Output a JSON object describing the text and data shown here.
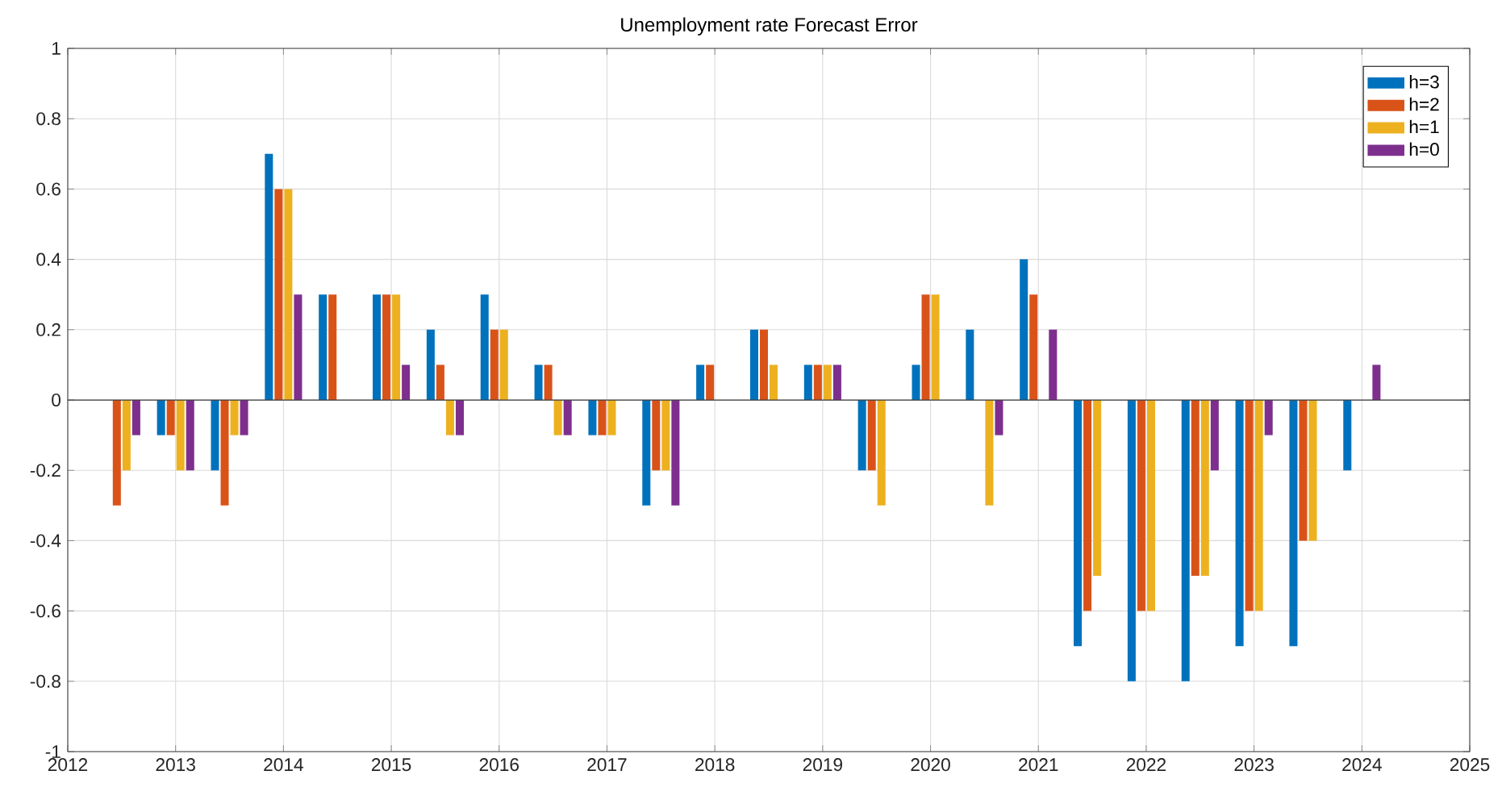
{
  "chart_data": {
    "type": "bar",
    "title": "Unemployment rate Forecast Error",
    "x": [
      2012.5,
      2013,
      2013.5,
      2014,
      2014.5,
      2015,
      2015.5,
      2016,
      2016.5,
      2017,
      2017.5,
      2018,
      2018.5,
      2019,
      2019.5,
      2020,
      2020.5,
      2021,
      2021.5,
      2022,
      2022.5,
      2023,
      2023.5,
      2024
    ],
    "series": [
      {
        "name": "h=3",
        "color": "#0072bd",
        "values": [
          0,
          -0.1,
          -0.2,
          0.7,
          0.3,
          0.3,
          0.2,
          0.3,
          0.1,
          -0.1,
          -0.3,
          0.1,
          0.2,
          0.1,
          -0.2,
          0.1,
          0.2,
          0.4,
          -0.7,
          -0.8,
          -0.8,
          -0.7,
          -0.7,
          -0.2
        ]
      },
      {
        "name": "h=2",
        "color": "#d95319",
        "values": [
          -0.3,
          -0.1,
          -0.3,
          0.6,
          0.3,
          0.3,
          0.1,
          0.2,
          0.1,
          -0.1,
          -0.2,
          0.1,
          0.2,
          0.1,
          -0.2,
          0.3,
          0,
          0.3,
          -0.6,
          -0.6,
          -0.5,
          -0.6,
          -0.4,
          0
        ]
      },
      {
        "name": "h=1",
        "color": "#edb120",
        "values": [
          -0.2,
          -0.2,
          -0.1,
          0.6,
          0,
          0.3,
          -0.1,
          0.2,
          -0.1,
          -0.1,
          -0.2,
          0,
          0.1,
          0.1,
          -0.3,
          0.3,
          -0.3,
          0,
          -0.5,
          -0.6,
          -0.5,
          -0.6,
          -0.4,
          0
        ]
      },
      {
        "name": "h=0",
        "color": "#7e2f8e",
        "values": [
          -0.1,
          -0.2,
          -0.1,
          0.3,
          0,
          0.1,
          -0.1,
          0,
          -0.1,
          0,
          -0.3,
          0,
          0,
          0.1,
          0,
          0,
          -0.1,
          0.2,
          0,
          0,
          -0.2,
          -0.1,
          0,
          0.1
        ]
      }
    ],
    "xlim": [
      2012,
      2025
    ],
    "xticks": [
      2012,
      2013,
      2014,
      2015,
      2016,
      2017,
      2018,
      2019,
      2020,
      2021,
      2022,
      2023,
      2024,
      2025
    ],
    "ylim": [
      -1,
      1
    ],
    "yticks": [
      -1,
      -0.8,
      -0.6,
      -0.4,
      -0.2,
      0,
      0.2,
      0.4,
      0.6,
      0.8,
      1
    ],
    "grid": true,
    "legend": "top right"
  }
}
